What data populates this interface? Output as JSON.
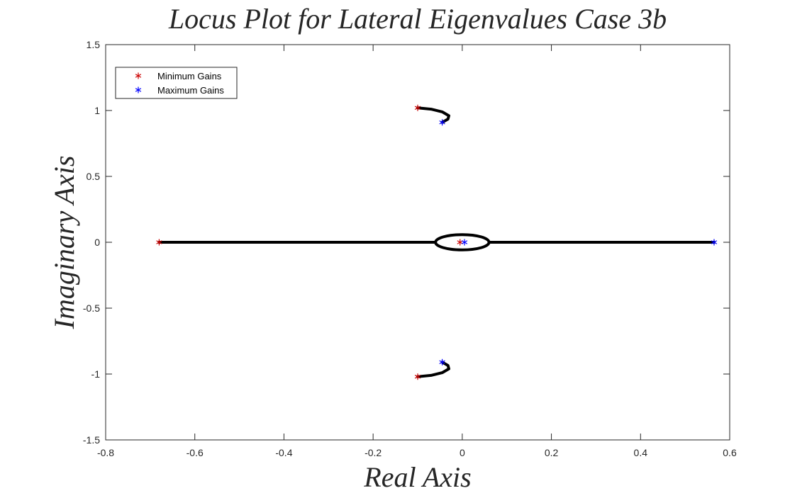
{
  "chart_data": {
    "type": "scatter",
    "title": "Locus Plot for Lateral Eigenvalues Case 3b",
    "xlabel": "Real Axis",
    "ylabel": "Imaginary Axis",
    "xlim": [
      -0.8,
      0.6
    ],
    "ylim": [
      -1.5,
      1.5
    ],
    "xticks": [
      -0.8,
      -0.6,
      -0.4,
      -0.2,
      0,
      0.2,
      0.4,
      0.6
    ],
    "xtick_labels": [
      "-0.8",
      "-0.6",
      "-0.4",
      "-0.2",
      "0",
      "0.2",
      "0.4",
      "0.6"
    ],
    "yticks": [
      -1.5,
      -1,
      -0.5,
      0,
      0.5,
      1,
      1.5
    ],
    "ytick_labels": [
      "-1.5",
      "-1",
      "-0.5",
      "0",
      "0.5",
      "1",
      "1.5"
    ],
    "grid": false,
    "legend_position": "top-left",
    "series": [
      {
        "name": "Minimum Gains",
        "color": "#cc0000",
        "marker": "asterisk",
        "points": [
          [
            -0.1,
            1.02
          ],
          [
            -0.1,
            -1.02
          ],
          [
            -0.68,
            0
          ],
          [
            -0.005,
            0
          ]
        ]
      },
      {
        "name": "Maximum Gains",
        "color": "#0000ff",
        "marker": "asterisk",
        "points": [
          [
            -0.045,
            0.91
          ],
          [
            -0.045,
            -0.91
          ],
          [
            0.565,
            0
          ],
          [
            0.005,
            0
          ]
        ]
      }
    ],
    "locus": {
      "color": "#000000",
      "branches": [
        [
          [
            -0.1,
            1.02
          ],
          [
            -0.07,
            1.01
          ],
          [
            -0.045,
            0.99
          ],
          [
            -0.03,
            0.96
          ],
          [
            -0.032,
            0.935
          ],
          [
            -0.045,
            0.91
          ]
        ],
        [
          [
            -0.1,
            -1.02
          ],
          [
            -0.07,
            -1.01
          ],
          [
            -0.045,
            -0.99
          ],
          [
            -0.03,
            -0.96
          ],
          [
            -0.032,
            -0.935
          ],
          [
            -0.045,
            -0.91
          ]
        ],
        [
          [
            -0.68,
            0
          ],
          [
            -0.06,
            0
          ]
        ],
        [
          [
            0.06,
            0
          ],
          [
            0.565,
            0
          ]
        ]
      ],
      "loop": {
        "center": [
          0,
          0
        ],
        "rx": 0.06,
        "ry": 0.058
      }
    }
  }
}
